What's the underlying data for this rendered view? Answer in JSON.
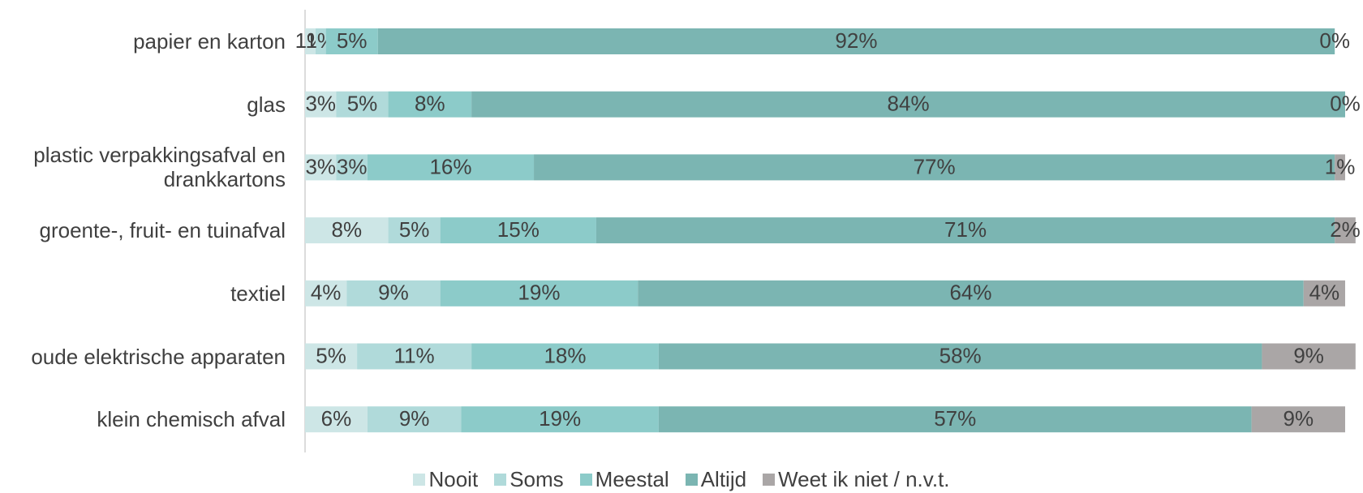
{
  "chart_data": {
    "type": "stacked-bar-horizontal",
    "categories": [
      "papier en karton",
      "glas",
      "plastic verpakkingsafval en drankkartons",
      "groente-, fruit- en tuinafval",
      "textiel",
      "oude elektrische apparaten",
      "klein chemisch afval"
    ],
    "xlim": [
      0,
      100
    ],
    "legend": "bottom",
    "series": [
      {
        "name": "Nooit",
        "color": "#cde6e6",
        "values": [
          1,
          3,
          3,
          8,
          4,
          5,
          6
        ],
        "value_labels": [
          "1%",
          "3%",
          "3%",
          "8%",
          "4%",
          "5%",
          "6%"
        ]
      },
      {
        "name": "Soms",
        "color": "#b0dada",
        "values": [
          1,
          5,
          3,
          5,
          9,
          11,
          9
        ],
        "value_labels": [
          "1%",
          "5%",
          "3%",
          "5%",
          "9%",
          "11%",
          "9%"
        ]
      },
      {
        "name": "Meestal",
        "color": "#8ccbc9",
        "values": [
          5,
          8,
          16,
          15,
          19,
          18,
          19
        ],
        "value_labels": [
          "5%",
          "8%",
          "16%",
          "15%",
          "19%",
          "18%",
          "19%"
        ]
      },
      {
        "name": "Altijd",
        "color": "#7bb5b2",
        "values": [
          92,
          84,
          77,
          71,
          64,
          58,
          57
        ],
        "value_labels": [
          "92%",
          "84%",
          "77%",
          "71%",
          "64%",
          "58%",
          "57%"
        ]
      },
      {
        "name": "Weet ik niet / n.v.t.",
        "color": "#aaa6a6",
        "values": [
          0,
          0,
          1,
          2,
          4,
          9,
          9
        ],
        "value_labels": [
          "0%",
          "0%",
          "1%",
          "2%",
          "4%",
          "9%",
          "9%"
        ]
      }
    ]
  }
}
